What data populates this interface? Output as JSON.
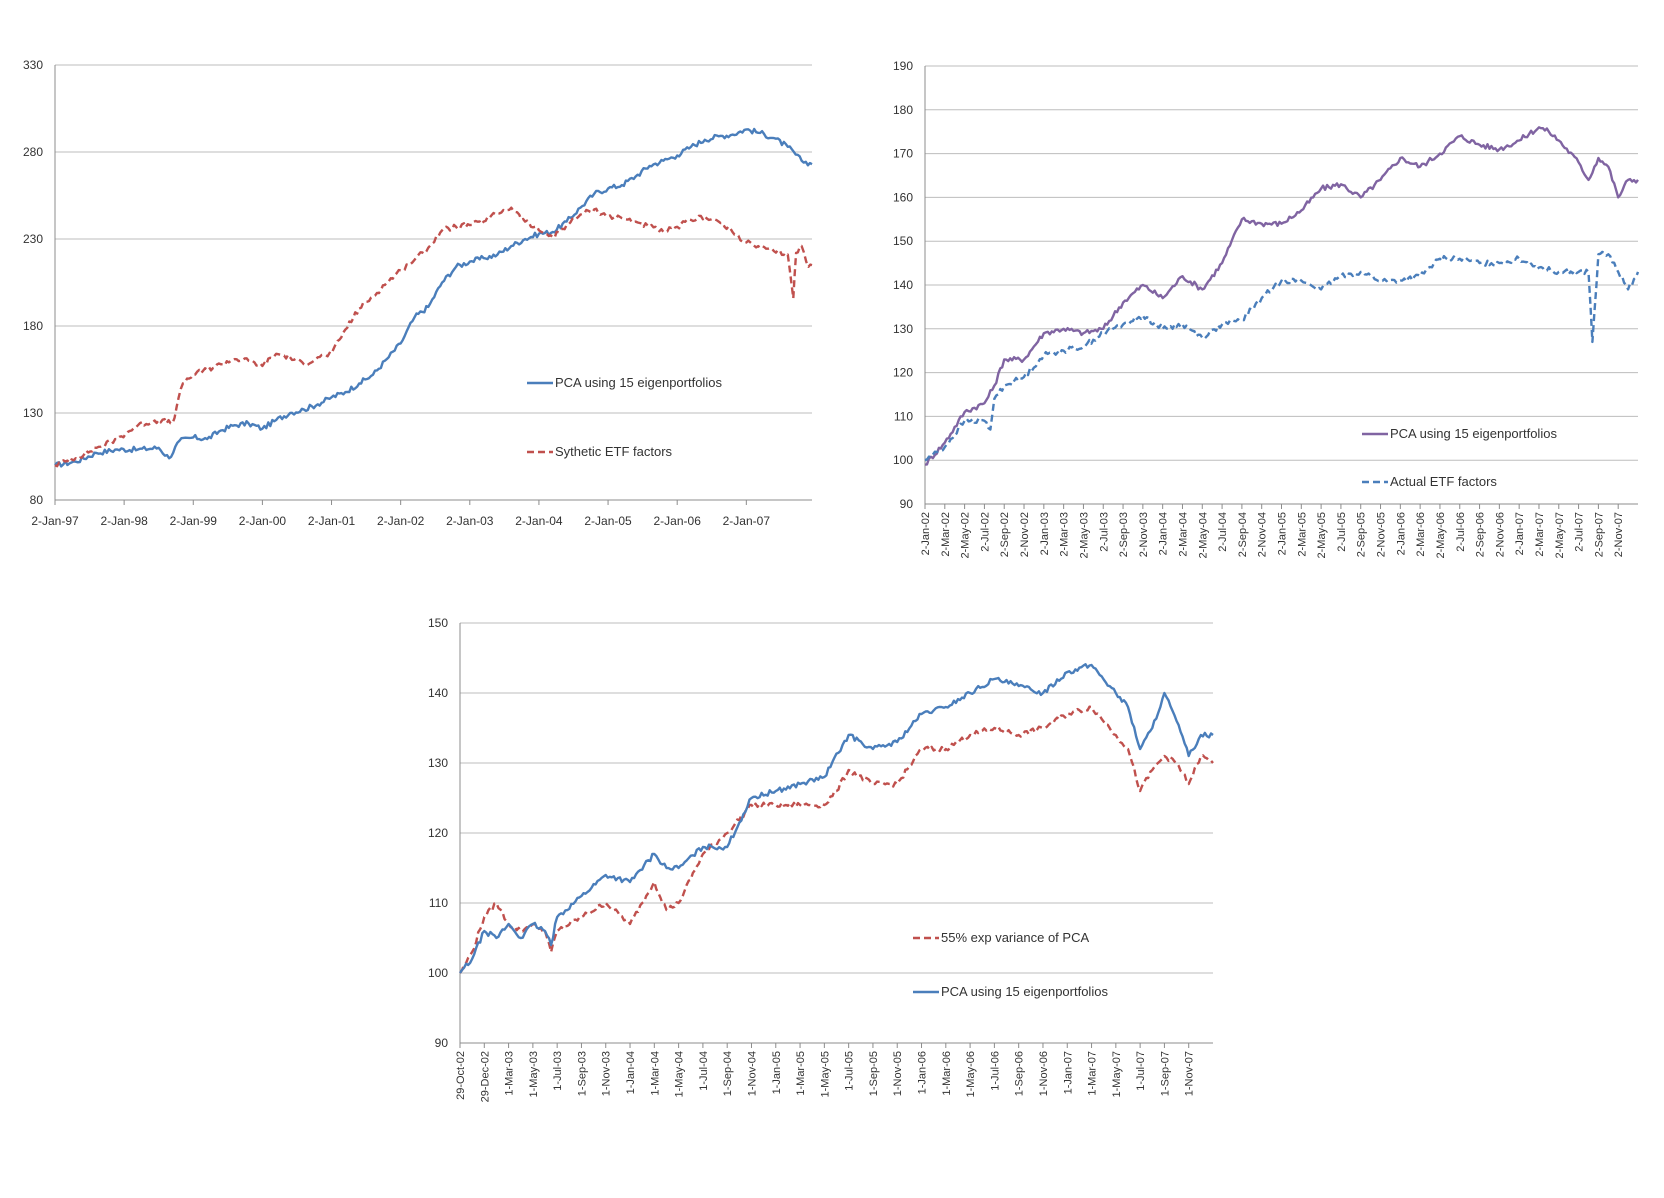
{
  "colors": {
    "blue": "#4a7ebb",
    "red": "#c0504d",
    "purple": "#8064a2",
    "grid": "#bdbdbd"
  },
  "chart_data": [
    {
      "id": "chart1",
      "type": "line",
      "title": "",
      "xlabel": "",
      "ylabel": "",
      "ylim": [
        80,
        330
      ],
      "yticks": [
        80,
        130,
        180,
        230,
        280,
        330
      ],
      "xlim": [
        0,
        10.95
      ],
      "xticks": [
        {
          "x": 0,
          "label": "2-Jan-97"
        },
        {
          "x": 1,
          "label": "2-Jan-98"
        },
        {
          "x": 2,
          "label": "2-Jan-99"
        },
        {
          "x": 3,
          "label": "2-Jan-00"
        },
        {
          "x": 4,
          "label": "2-Jan-01"
        },
        {
          "x": 5,
          "label": "2-Jan-02"
        },
        {
          "x": 6,
          "label": "2-Jan-03"
        },
        {
          "x": 7,
          "label": "2-Jan-04"
        },
        {
          "x": 8,
          "label": "2-Jan-05"
        },
        {
          "x": 9,
          "label": "2-Jan-06"
        },
        {
          "x": 10,
          "label": "2-Jan-07"
        }
      ],
      "x_unit": "years since 2-Jan-97",
      "grid": true,
      "legend": "inside-right",
      "series": [
        {
          "name": "PCA using 15 eigenportfolios",
          "color": "blue",
          "dash": false,
          "legend_order": 0,
          "x": [
            0,
            0.3,
            0.6,
            0.9,
            1.2,
            1.5,
            1.65,
            1.8,
            2.0,
            2.2,
            2.4,
            2.6,
            2.8,
            3.0,
            3.2,
            3.4,
            3.6,
            3.8,
            4.0,
            4.2,
            4.4,
            4.6,
            4.8,
            5.0,
            5.2,
            5.4,
            5.6,
            5.8,
            6.0,
            6.2,
            6.4,
            6.6,
            6.8,
            7.0,
            7.2,
            7.4,
            7.6,
            7.8,
            8.0,
            8.2,
            8.4,
            8.6,
            8.8,
            9.0,
            9.2,
            9.4,
            9.6,
            9.8,
            10.0,
            10.2,
            10.4,
            10.6,
            10.8,
            10.95
          ],
          "y": [
            100,
            102,
            107,
            109,
            109,
            110,
            104,
            114,
            116,
            115,
            120,
            123,
            124,
            121,
            126,
            130,
            132,
            135,
            139,
            142,
            147,
            152,
            161,
            170,
            185,
            191,
            205,
            214,
            217,
            219,
            221,
            226,
            230,
            233,
            234,
            240,
            248,
            256,
            259,
            261,
            266,
            272,
            275,
            278,
            283,
            287,
            289,
            290,
            293,
            291,
            288,
            283,
            275,
            273
          ]
        },
        {
          "name": "Sythetic ETF factors",
          "color": "red",
          "dash": true,
          "legend_order": 1,
          "x": [
            0,
            0.3,
            0.6,
            0.9,
            1.2,
            1.5,
            1.7,
            1.85,
            2.0,
            2.2,
            2.4,
            2.6,
            2.8,
            3.0,
            3.2,
            3.4,
            3.6,
            3.8,
            4.0,
            4.2,
            4.4,
            4.6,
            4.8,
            5.0,
            5.2,
            5.4,
            5.6,
            5.8,
            6.0,
            6.2,
            6.4,
            6.6,
            6.8,
            7.0,
            7.2,
            7.4,
            7.6,
            7.8,
            8.0,
            8.2,
            8.4,
            8.6,
            8.8,
            9.0,
            9.2,
            9.4,
            9.6,
            9.8,
            10.0,
            10.2,
            10.4,
            10.6,
            10.68,
            10.72,
            10.8,
            10.9,
            10.95
          ],
          "y": [
            100,
            104,
            110,
            115,
            123,
            126,
            124,
            147,
            152,
            155,
            158,
            161,
            160,
            157,
            164,
            162,
            158,
            162,
            164,
            178,
            190,
            197,
            205,
            212,
            218,
            225,
            235,
            237,
            238,
            240,
            245,
            248,
            240,
            235,
            231,
            238,
            244,
            247,
            243,
            242,
            240,
            237,
            234,
            237,
            241,
            243,
            240,
            234,
            228,
            225,
            223,
            221,
            196,
            222,
            226,
            214,
            215
          ]
        }
      ]
    },
    {
      "id": "chart2",
      "type": "line",
      "title": "",
      "xlabel": "",
      "ylabel": "",
      "ylim": [
        90,
        190
      ],
      "yticks": [
        90,
        100,
        110,
        120,
        130,
        140,
        150,
        160,
        170,
        180,
        190
      ],
      "xlim": [
        0,
        72
      ],
      "xticks": [
        {
          "x": 0,
          "label": "2-Jan-02"
        },
        {
          "x": 2,
          "label": "2-Mar-02"
        },
        {
          "x": 4,
          "label": "2-May-02"
        },
        {
          "x": 6,
          "label": "2-Jul-02"
        },
        {
          "x": 8,
          "label": "2-Sep-02"
        },
        {
          "x": 10,
          "label": "2-Nov-02"
        },
        {
          "x": 12,
          "label": "2-Jan-03"
        },
        {
          "x": 14,
          "label": "2-Mar-03"
        },
        {
          "x": 16,
          "label": "2-May-03"
        },
        {
          "x": 18,
          "label": "2-Jul-03"
        },
        {
          "x": 20,
          "label": "2-Sep-03"
        },
        {
          "x": 22,
          "label": "2-Nov-03"
        },
        {
          "x": 24,
          "label": "2-Jan-04"
        },
        {
          "x": 26,
          "label": "2-Mar-04"
        },
        {
          "x": 28,
          "label": "2-May-04"
        },
        {
          "x": 30,
          "label": "2-Jul-04"
        },
        {
          "x": 32,
          "label": "2-Sep-04"
        },
        {
          "x": 34,
          "label": "2-Nov-04"
        },
        {
          "x": 36,
          "label": "2-Jan-05"
        },
        {
          "x": 38,
          "label": "2-Mar-05"
        },
        {
          "x": 40,
          "label": "2-May-05"
        },
        {
          "x": 42,
          "label": "2-Jul-05"
        },
        {
          "x": 44,
          "label": "2-Sep-05"
        },
        {
          "x": 46,
          "label": "2-Nov-05"
        },
        {
          "x": 48,
          "label": "2-Jan-06"
        },
        {
          "x": 50,
          "label": "2-Mar-06"
        },
        {
          "x": 52,
          "label": "2-May-06"
        },
        {
          "x": 54,
          "label": "2-Jul-06"
        },
        {
          "x": 56,
          "label": "2-Sep-06"
        },
        {
          "x": 58,
          "label": "2-Nov-06"
        },
        {
          "x": 60,
          "label": "2-Jan-07"
        },
        {
          "x": 62,
          "label": "2-Mar-07"
        },
        {
          "x": 64,
          "label": "2-May-07"
        },
        {
          "x": 66,
          "label": "2-Jul-07"
        },
        {
          "x": 68,
          "label": "2-Sep-07"
        },
        {
          "x": 70,
          "label": "2-Nov-07"
        }
      ],
      "x_unit": "months since 2-Jan-02",
      "grid": true,
      "legend": "inside-bottom-right",
      "series": [
        {
          "name": "PCA using 15 eigenportfolios",
          "color": "purple",
          "dash": false,
          "legend_order": 0,
          "x": [
            0,
            2,
            4,
            6,
            7,
            8,
            10,
            12,
            14,
            16,
            18,
            20,
            22,
            24,
            26,
            28,
            30,
            32,
            34,
            36,
            38,
            40,
            42,
            44,
            46,
            48,
            50,
            52,
            54,
            56,
            58,
            60,
            62,
            63,
            64,
            66,
            67,
            68,
            69,
            70,
            71,
            72
          ],
          "y": [
            99,
            104,
            111,
            113,
            117,
            123,
            123,
            129,
            130,
            129,
            130,
            136,
            140,
            137,
            142,
            139,
            145,
            155,
            154,
            154,
            157,
            162,
            163,
            160,
            164,
            169,
            167,
            170,
            174,
            172,
            171,
            173,
            176,
            175,
            173,
            168,
            164,
            169,
            167,
            160,
            164,
            164
          ]
        },
        {
          "name": "Actual ETF factors",
          "color": "blue",
          "dash": true,
          "legend_order": 1,
          "x": [
            0,
            2,
            4,
            6,
            6.6,
            7,
            8,
            10,
            12,
            14,
            16,
            18,
            20,
            22,
            24,
            26,
            28,
            30,
            32,
            34,
            36,
            38,
            40,
            42,
            44,
            46,
            48,
            50,
            52,
            54,
            56,
            58,
            60,
            62,
            64,
            66,
            67,
            67.4,
            68,
            69,
            70,
            71,
            72
          ],
          "y": [
            100,
            103,
            109,
            109,
            107,
            114,
            117,
            119,
            124,
            125,
            126,
            129,
            131,
            133,
            130,
            131,
            128,
            131,
            132,
            137,
            141,
            141,
            139,
            142,
            143,
            141,
            141,
            142,
            146,
            146,
            145,
            145,
            146,
            144,
            143,
            143,
            143,
            127,
            147,
            147,
            143,
            139,
            143
          ]
        }
      ]
    },
    {
      "id": "chart3",
      "type": "line",
      "title": "",
      "xlabel": "",
      "ylabel": "",
      "ylim": [
        90,
        150
      ],
      "yticks": [
        90,
        100,
        110,
        120,
        130,
        140,
        150
      ],
      "xlim": [
        0,
        62
      ],
      "xticks": [
        {
          "x": 0,
          "label": "29-Oct-02"
        },
        {
          "x": 2,
          "label": "29-Dec-02"
        },
        {
          "x": 4,
          "label": "1-Mar-03"
        },
        {
          "x": 6,
          "label": "1-May-03"
        },
        {
          "x": 8,
          "label": "1-Jul-03"
        },
        {
          "x": 10,
          "label": "1-Sep-03"
        },
        {
          "x": 12,
          "label": "1-Nov-03"
        },
        {
          "x": 14,
          "label": "1-Jan-04"
        },
        {
          "x": 16,
          "label": "1-Mar-04"
        },
        {
          "x": 18,
          "label": "1-May-04"
        },
        {
          "x": 20,
          "label": "1-Jul-04"
        },
        {
          "x": 22,
          "label": "1-Sep-04"
        },
        {
          "x": 24,
          "label": "1-Nov-04"
        },
        {
          "x": 26,
          "label": "1-Jan-05"
        },
        {
          "x": 28,
          "label": "1-Mar-05"
        },
        {
          "x": 30,
          "label": "1-May-05"
        },
        {
          "x": 32,
          "label": "1-Jul-05"
        },
        {
          "x": 34,
          "label": "1-Sep-05"
        },
        {
          "x": 36,
          "label": "1-Nov-05"
        },
        {
          "x": 38,
          "label": "1-Jan-06"
        },
        {
          "x": 40,
          "label": "1-Mar-06"
        },
        {
          "x": 42,
          "label": "1-May-06"
        },
        {
          "x": 44,
          "label": "1-Jul-06"
        },
        {
          "x": 46,
          "label": "1-Sep-06"
        },
        {
          "x": 48,
          "label": "1-Nov-06"
        },
        {
          "x": 50,
          "label": "1-Jan-07"
        },
        {
          "x": 52,
          "label": "1-Mar-07"
        },
        {
          "x": 54,
          "label": "1-May-07"
        },
        {
          "x": 56,
          "label": "1-Jul-07"
        },
        {
          "x": 58,
          "label": "1-Sep-07"
        },
        {
          "x": 60,
          "label": "1-Nov-07"
        }
      ],
      "x_unit": "months since 29-Oct-02",
      "grid": true,
      "legend": "inside-bottom-right",
      "series": [
        {
          "name": "55% exp variance of PCA",
          "color": "red",
          "dash": true,
          "legend_order": 0,
          "x": [
            0,
            1,
            2,
            3,
            4,
            5,
            6,
            7,
            7.5,
            8,
            10,
            12,
            14,
            15,
            16,
            17,
            18,
            20,
            22,
            24,
            26,
            28,
            30,
            31,
            32,
            34,
            36,
            38,
            40,
            42,
            44,
            46,
            48,
            50,
            52,
            54,
            55,
            56,
            57,
            58,
            59,
            60,
            61,
            62
          ],
          "y": [
            100,
            103,
            108,
            110,
            107,
            106,
            107,
            106,
            103,
            106,
            108,
            110,
            107,
            110,
            113,
            109,
            110,
            117,
            120,
            124,
            124,
            124,
            124,
            126,
            129,
            127,
            127,
            132,
            132,
            134,
            135,
            134,
            135,
            137,
            138,
            134,
            132,
            126,
            129,
            131,
            130,
            127,
            131,
            130
          ]
        },
        {
          "name": "PCA using 15 eigenportfolios",
          "color": "blue",
          "dash": false,
          "legend_order": 1,
          "x": [
            0,
            1,
            2,
            3,
            4,
            5,
            6,
            7,
            7.5,
            8,
            10,
            12,
            14,
            16,
            17,
            18,
            20,
            22,
            24,
            26,
            28,
            30,
            32,
            34,
            36,
            38,
            40,
            42,
            44,
            46,
            48,
            50,
            52,
            54,
            55,
            56,
            57,
            58,
            59,
            60,
            61,
            62
          ],
          "y": [
            100,
            102,
            106,
            105,
            107,
            105,
            107,
            106,
            104,
            108,
            111,
            114,
            113,
            117,
            115,
            115,
            118,
            118,
            125,
            126,
            127,
            128,
            134,
            132,
            133,
            137,
            138,
            140,
            142,
            141,
            140,
            143,
            144,
            140,
            138,
            132,
            135,
            140,
            136,
            131,
            134,
            134
          ]
        }
      ]
    }
  ]
}
